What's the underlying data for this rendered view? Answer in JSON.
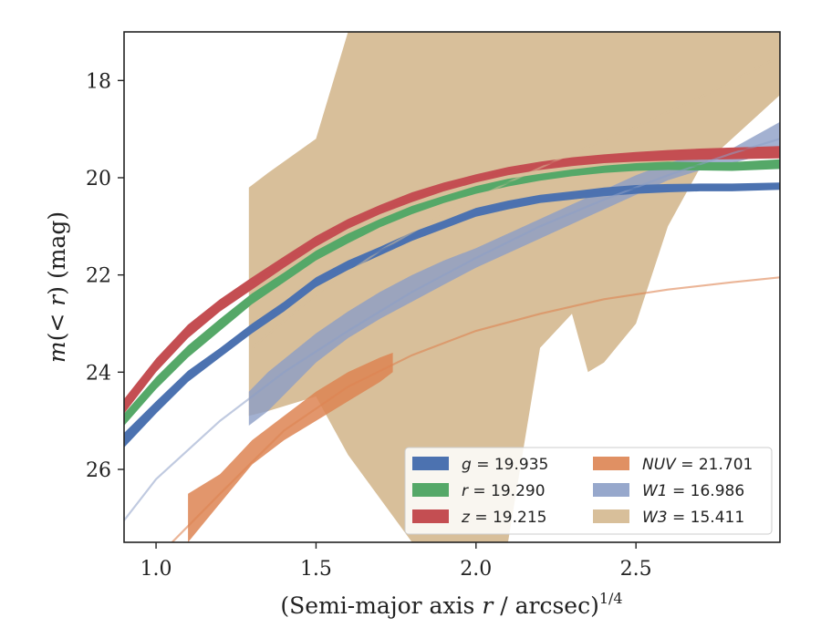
{
  "chart_data": {
    "type": "area",
    "xlabel": "(Semi-major axis r / arcsec)^1/4",
    "ylabel": "m(< r) (mag)",
    "xlim": [
      0.9,
      2.95
    ],
    "ylim": [
      27.5,
      17.0
    ],
    "y_inverted": true,
    "grid": false,
    "legend_position": "bottom-right",
    "x_ticks": [
      1.0,
      1.5,
      2.0,
      2.5
    ],
    "x_tick_labels": [
      "1.0",
      "1.5",
      "2.0",
      "2.5"
    ],
    "y_ticks": [
      18,
      20,
      22,
      24,
      26
    ],
    "y_tick_labels": [
      "18",
      "20",
      "22",
      "24",
      "26"
    ],
    "series": [
      {
        "name": "g = 19.935",
        "legend_symbol": "g",
        "legend_value": "= 19.935",
        "color": "#4c72b0",
        "band_x": [
          0.9,
          1.0,
          1.1,
          1.2,
          1.3,
          1.4,
          1.5,
          1.6,
          1.7,
          1.8,
          1.9,
          2.0,
          2.1,
          2.2,
          2.3,
          2.4,
          2.5,
          2.6,
          2.7,
          2.8,
          2.95
        ],
        "band_lower": [
          25.55,
          24.85,
          24.2,
          23.7,
          23.2,
          22.75,
          22.25,
          21.9,
          21.6,
          21.3,
          21.05,
          20.8,
          20.65,
          20.52,
          20.45,
          20.38,
          20.33,
          20.3,
          20.28,
          20.28,
          20.25
        ],
        "band_upper": [
          25.25,
          24.6,
          23.97,
          23.5,
          23.0,
          22.55,
          22.05,
          21.7,
          21.42,
          21.12,
          20.88,
          20.62,
          20.47,
          20.35,
          20.28,
          20.2,
          20.15,
          20.13,
          20.12,
          20.12,
          20.1
        ],
        "fit_x": [
          1.3,
          1.5,
          1.7,
          1.9,
          2.1,
          2.3,
          2.5,
          2.6
        ],
        "fit_y": [
          23.1,
          22.1,
          21.5,
          20.95,
          20.55,
          20.35,
          20.22,
          20.2
        ]
      },
      {
        "name": "r = 19.290",
        "legend_symbol": "r",
        "legend_value": "= 19.290",
        "color": "#55a868",
        "band_x": [
          0.9,
          1.0,
          1.1,
          1.2,
          1.3,
          1.4,
          1.5,
          1.6,
          1.7,
          1.8,
          1.9,
          2.0,
          2.1,
          2.2,
          2.3,
          2.4,
          2.5,
          2.6,
          2.7,
          2.8,
          2.95
        ],
        "band_lower": [
          25.1,
          24.35,
          23.7,
          23.15,
          22.6,
          22.15,
          21.7,
          21.35,
          21.02,
          20.75,
          20.52,
          20.33,
          20.18,
          20.06,
          19.97,
          19.9,
          19.86,
          19.84,
          19.85,
          19.86,
          19.82
        ],
        "band_upper": [
          24.85,
          24.1,
          23.45,
          22.9,
          22.38,
          21.95,
          21.5,
          21.15,
          20.85,
          20.58,
          20.37,
          20.17,
          20.02,
          19.92,
          19.83,
          19.75,
          19.7,
          19.67,
          19.68,
          19.68,
          19.62
        ],
        "fit_x": [
          1.3,
          1.5,
          1.7,
          1.9,
          2.1,
          2.3,
          2.5,
          2.7
        ],
        "fit_y": [
          22.5,
          21.6,
          20.93,
          20.45,
          20.1,
          19.9,
          19.78,
          19.75
        ]
      },
      {
        "name": "z = 19.215",
        "legend_symbol": "z",
        "legend_value": "= 19.215",
        "color": "#c44e52",
        "band_x": [
          0.9,
          1.0,
          1.1,
          1.2,
          1.3,
          1.4,
          1.5,
          1.6,
          1.7,
          1.8,
          1.9,
          2.0,
          2.1,
          2.2,
          2.3,
          2.4,
          2.5,
          2.6,
          2.7,
          2.8,
          2.95
        ],
        "band_lower": [
          24.85,
          24.0,
          23.3,
          22.75,
          22.3,
          21.85,
          21.42,
          21.05,
          20.75,
          20.5,
          20.28,
          20.1,
          19.95,
          19.84,
          19.76,
          19.7,
          19.67,
          19.65,
          19.63,
          19.62,
          19.6
        ],
        "band_upper": [
          24.55,
          23.72,
          23.02,
          22.5,
          22.05,
          21.62,
          21.2,
          20.85,
          20.56,
          20.3,
          20.1,
          19.93,
          19.78,
          19.67,
          19.58,
          19.52,
          19.47,
          19.43,
          19.4,
          19.38,
          19.35
        ],
        "fit_x": [
          1.3,
          1.5,
          1.7,
          1.9,
          2.1,
          2.3,
          2.5,
          2.7,
          2.95
        ],
        "fit_y": [
          22.15,
          21.3,
          20.65,
          20.2,
          19.85,
          19.62,
          19.5,
          19.43,
          19.4
        ]
      },
      {
        "name": "NUV = 21.701",
        "legend_symbol": "NUV",
        "legend_value": "= 21.701",
        "color": "#dd8452",
        "band_x": [
          1.1,
          1.2,
          1.3,
          1.4,
          1.5,
          1.6,
          1.7,
          1.74
        ],
        "band_lower": [
          27.5,
          26.7,
          25.9,
          25.4,
          25.0,
          24.6,
          24.2,
          24.0
        ],
        "band_upper": [
          26.5,
          26.1,
          25.4,
          24.9,
          24.4,
          24.0,
          23.7,
          23.6
        ],
        "fit_x": [
          1.05,
          1.2,
          1.4,
          1.6,
          1.8,
          2.0,
          2.2,
          2.4,
          2.6,
          2.8,
          2.95
        ],
        "fit_y": [
          27.5,
          26.5,
          25.2,
          24.3,
          23.65,
          23.15,
          22.8,
          22.5,
          22.3,
          22.15,
          22.05
        ]
      },
      {
        "name": "W1 = 16.986",
        "legend_symbol": "W1",
        "legend_value": "= 16.986",
        "color": "#8c9ec6",
        "band_x": [
          1.29,
          1.35,
          1.5,
          1.6,
          1.7,
          1.8,
          1.9,
          2.0,
          2.1,
          2.2,
          2.3,
          2.4,
          2.5,
          2.6,
          2.7,
          2.8,
          2.95
        ],
        "band_lower": [
          25.1,
          24.8,
          23.8,
          23.3,
          22.9,
          22.55,
          22.2,
          21.85,
          21.55,
          21.25,
          20.95,
          20.65,
          20.35,
          20.05,
          19.85,
          19.7,
          19.45
        ],
        "band_upper": [
          24.4,
          24.0,
          23.2,
          22.75,
          22.35,
          22.0,
          21.7,
          21.45,
          21.15,
          20.85,
          20.55,
          20.25,
          19.95,
          19.7,
          19.5,
          19.4,
          18.85
        ],
        "fit_x": [
          0.9,
          1.0,
          1.2,
          1.4,
          1.6,
          1.8,
          2.0,
          2.2,
          2.4,
          2.6,
          2.8,
          2.95
        ],
        "fit_y": [
          27.05,
          26.2,
          25.0,
          24.0,
          23.15,
          22.35,
          21.65,
          21.0,
          20.45,
          19.95,
          19.5,
          19.2
        ]
      },
      {
        "name": "W3 = 15.411",
        "legend_symbol": "W3",
        "legend_value": "= 15.411",
        "color": "#d8bf9a",
        "band_x": [
          1.29,
          1.35,
          1.5,
          1.6,
          1.7,
          1.8,
          1.9,
          2.0,
          2.1,
          2.2,
          2.3,
          2.35,
          2.4,
          2.5,
          2.6,
          2.7,
          2.8,
          2.95
        ],
        "band_lower": [
          24.9,
          24.8,
          24.5,
          25.7,
          26.6,
          27.5,
          27.5,
          27.5,
          27.5,
          23.5,
          22.8,
          24.0,
          23.8,
          23.0,
          21.0,
          19.8,
          19.2,
          18.3
        ],
        "band_upper": [
          20.2,
          19.9,
          19.2,
          17.0,
          17.0,
          17.0,
          17.0,
          17.0,
          17.0,
          17.0,
          17.0,
          17.0,
          17.0,
          17.0,
          17.0,
          17.0,
          17.0,
          17.0
        ],
        "fit_x": [
          1.3,
          1.5,
          1.7,
          1.9,
          2.1,
          2.3,
          2.5,
          2.7,
          2.95
        ],
        "fit_y": [
          23.5,
          22.4,
          21.5,
          20.75,
          20.1,
          19.5,
          18.95,
          18.35,
          17.5
        ]
      }
    ]
  }
}
